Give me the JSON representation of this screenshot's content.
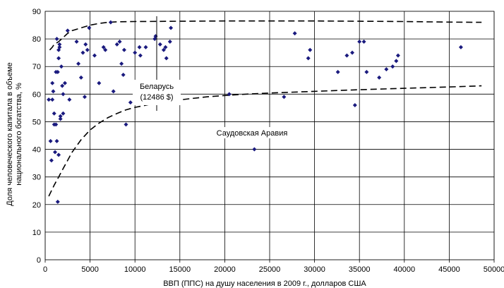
{
  "chart_data": {
    "type": "scatter",
    "xlabel": "ВВП (ППС) на душу населения в 2009 г., долларов США",
    "ylabel_line1": "Доля  человеческого капитала в объеме",
    "ylabel_line2": "национального богатства, %",
    "xlim": [
      0,
      50000
    ],
    "ylim": [
      0,
      90
    ],
    "x_ticks": [
      "0",
      "5000",
      "10000",
      "15000",
      "20000",
      "25000",
      "30000",
      "35000",
      "40000",
      "45000",
      "50000"
    ],
    "y_ticks": [
      "0",
      "10",
      "20",
      "30",
      "40",
      "50",
      "60",
      "70",
      "80",
      "90"
    ],
    "grid": "horizontal and vertical",
    "marker_color": "#1a1a7e",
    "annotations": {
      "belarus_line1": "Беларусь",
      "belarus_line2": "(12486 $)",
      "saudi": "Саудовская Аравия"
    },
    "points": [
      [
        400,
        58
      ],
      [
        600,
        43
      ],
      [
        700,
        36
      ],
      [
        800,
        64
      ],
      [
        800,
        58
      ],
      [
        900,
        61
      ],
      [
        1000,
        49
      ],
      [
        1000,
        53
      ],
      [
        1100,
        39
      ],
      [
        1200,
        49
      ],
      [
        1200,
        68
      ],
      [
        1300,
        43
      ],
      [
        1300,
        80
      ],
      [
        1400,
        21
      ],
      [
        1400,
        68
      ],
      [
        1500,
        76
      ],
      [
        1500,
        73
      ],
      [
        1500,
        38
      ],
      [
        1600,
        77
      ],
      [
        1600,
        78
      ],
      [
        1700,
        52
      ],
      [
        1700,
        51
      ],
      [
        1800,
        70
      ],
      [
        1900,
        63
      ],
      [
        2000,
        60
      ],
      [
        2000,
        53
      ],
      [
        2200,
        64
      ],
      [
        2500,
        83
      ],
      [
        2700,
        58
      ],
      [
        3500,
        79
      ],
      [
        3700,
        71
      ],
      [
        4000,
        66
      ],
      [
        4200,
        75
      ],
      [
        4400,
        59
      ],
      [
        4500,
        78
      ],
      [
        4700,
        76
      ],
      [
        4900,
        84
      ],
      [
        5500,
        74
      ],
      [
        6000,
        64
      ],
      [
        6500,
        77
      ],
      [
        6700,
        76
      ],
      [
        7300,
        86
      ],
      [
        7600,
        61
      ],
      [
        8000,
        78
      ],
      [
        8300,
        79
      ],
      [
        8500,
        71
      ],
      [
        8700,
        67
      ],
      [
        8800,
        76
      ],
      [
        9000,
        49
      ],
      [
        9500,
        57
      ],
      [
        10000,
        75
      ],
      [
        10500,
        77
      ],
      [
        10600,
        74
      ],
      [
        11200,
        77
      ],
      [
        12200,
        80
      ],
      [
        12300,
        81
      ],
      [
        12800,
        78
      ],
      [
        13200,
        76
      ],
      [
        13400,
        77
      ],
      [
        13500,
        73
      ],
      [
        13900,
        79
      ],
      [
        14000,
        84
      ],
      [
        20500,
        60
      ],
      [
        23300,
        40
      ],
      [
        26600,
        59
      ],
      [
        27800,
        82
      ],
      [
        29300,
        73
      ],
      [
        29500,
        76
      ],
      [
        32600,
        68
      ],
      [
        33600,
        74
      ],
      [
        34200,
        75
      ],
      [
        34500,
        56
      ],
      [
        35000,
        79
      ],
      [
        35500,
        79
      ],
      [
        35800,
        68
      ],
      [
        37200,
        66
      ],
      [
        38000,
        69
      ],
      [
        38700,
        70
      ],
      [
        39100,
        72
      ],
      [
        39300,
        74
      ],
      [
        46300,
        77
      ]
    ],
    "upper_curve": [
      [
        500,
        76
      ],
      [
        800,
        77
      ],
      [
        1000,
        78
      ],
      [
        1500,
        79
      ],
      [
        2000,
        80.5
      ],
      [
        2500,
        82
      ],
      [
        3000,
        83
      ],
      [
        4000,
        84
      ],
      [
        5000,
        85
      ],
      [
        6000,
        85.6
      ],
      [
        7000,
        86
      ],
      [
        8000,
        86.2
      ],
      [
        10000,
        86.3
      ],
      [
        15000,
        86.4
      ],
      [
        20000,
        86.5
      ],
      [
        25000,
        86.5
      ],
      [
        30000,
        86.5
      ],
      [
        35000,
        86.4
      ],
      [
        40000,
        86.3
      ],
      [
        45000,
        86.1
      ],
      [
        48600,
        86
      ]
    ],
    "lower_curve": [
      [
        400,
        23
      ],
      [
        700,
        25
      ],
      [
        1000,
        27
      ],
      [
        1500,
        30
      ],
      [
        2000,
        33
      ],
      [
        2500,
        36
      ],
      [
        3000,
        39
      ],
      [
        4000,
        43.5
      ],
      [
        5000,
        47
      ],
      [
        6000,
        49.5
      ],
      [
        7000,
        51.5
      ],
      [
        8000,
        53
      ],
      [
        9000,
        54.3
      ],
      [
        10000,
        55.2
      ],
      [
        12000,
        56.5
      ],
      [
        14000,
        57.5
      ],
      [
        16000,
        58.3
      ],
      [
        18000,
        59
      ],
      [
        20000,
        59.5
      ],
      [
        22500,
        60
      ],
      [
        25000,
        60.4
      ],
      [
        30000,
        61
      ],
      [
        35000,
        61.6
      ],
      [
        40000,
        62.1
      ],
      [
        45000,
        62.6
      ],
      [
        48600,
        63
      ]
    ]
  }
}
